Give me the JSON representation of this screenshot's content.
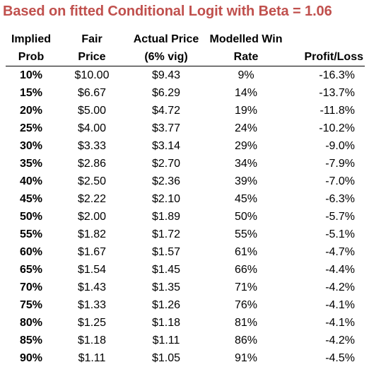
{
  "title": "Based on fitted Conditional Logit with Beta = 1.06",
  "colors": {
    "title": "#c0504d",
    "text": "#000000",
    "background": "#ffffff"
  },
  "table": {
    "headers": {
      "implied_prob": [
        "Implied",
        "Prob"
      ],
      "fair_price": [
        "Fair",
        "Price"
      ],
      "actual_price": [
        "Actual Price",
        "(6% vig)"
      ],
      "modelled_win_rate": [
        "Modelled Win",
        "Rate"
      ],
      "profit_loss": [
        "",
        "Profit/Loss"
      ]
    },
    "rows": [
      {
        "implied_prob": "10%",
        "fair_price": "$10.00",
        "actual_price": "$9.43",
        "modelled_win_rate": "9%",
        "profit_loss": "-16.3%"
      },
      {
        "implied_prob": "15%",
        "fair_price": "$6.67",
        "actual_price": "$6.29",
        "modelled_win_rate": "14%",
        "profit_loss": "-13.7%"
      },
      {
        "implied_prob": "20%",
        "fair_price": "$5.00",
        "actual_price": "$4.72",
        "modelled_win_rate": "19%",
        "profit_loss": "-11.8%"
      },
      {
        "implied_prob": "25%",
        "fair_price": "$4.00",
        "actual_price": "$3.77",
        "modelled_win_rate": "24%",
        "profit_loss": "-10.2%"
      },
      {
        "implied_prob": "30%",
        "fair_price": "$3.33",
        "actual_price": "$3.14",
        "modelled_win_rate": "29%",
        "profit_loss": "-9.0%"
      },
      {
        "implied_prob": "35%",
        "fair_price": "$2.86",
        "actual_price": "$2.70",
        "modelled_win_rate": "34%",
        "profit_loss": "-7.9%"
      },
      {
        "implied_prob": "40%",
        "fair_price": "$2.50",
        "actual_price": "$2.36",
        "modelled_win_rate": "39%",
        "profit_loss": "-7.0%"
      },
      {
        "implied_prob": "45%",
        "fair_price": "$2.22",
        "actual_price": "$2.10",
        "modelled_win_rate": "45%",
        "profit_loss": "-6.3%"
      },
      {
        "implied_prob": "50%",
        "fair_price": "$2.00",
        "actual_price": "$1.89",
        "modelled_win_rate": "50%",
        "profit_loss": "-5.7%"
      },
      {
        "implied_prob": "55%",
        "fair_price": "$1.82",
        "actual_price": "$1.72",
        "modelled_win_rate": "55%",
        "profit_loss": "-5.1%"
      },
      {
        "implied_prob": "60%",
        "fair_price": "$1.67",
        "actual_price": "$1.57",
        "modelled_win_rate": "61%",
        "profit_loss": "-4.7%"
      },
      {
        "implied_prob": "65%",
        "fair_price": "$1.54",
        "actual_price": "$1.45",
        "modelled_win_rate": "66%",
        "profit_loss": "-4.4%"
      },
      {
        "implied_prob": "70%",
        "fair_price": "$1.43",
        "actual_price": "$1.35",
        "modelled_win_rate": "71%",
        "profit_loss": "-4.2%"
      },
      {
        "implied_prob": "75%",
        "fair_price": "$1.33",
        "actual_price": "$1.26",
        "modelled_win_rate": "76%",
        "profit_loss": "-4.1%"
      },
      {
        "implied_prob": "80%",
        "fair_price": "$1.25",
        "actual_price": "$1.18",
        "modelled_win_rate": "81%",
        "profit_loss": "-4.1%"
      },
      {
        "implied_prob": "85%",
        "fair_price": "$1.18",
        "actual_price": "$1.11",
        "modelled_win_rate": "86%",
        "profit_loss": "-4.2%"
      },
      {
        "implied_prob": "90%",
        "fair_price": "$1.11",
        "actual_price": "$1.05",
        "modelled_win_rate": "91%",
        "profit_loss": "-4.5%"
      }
    ]
  }
}
